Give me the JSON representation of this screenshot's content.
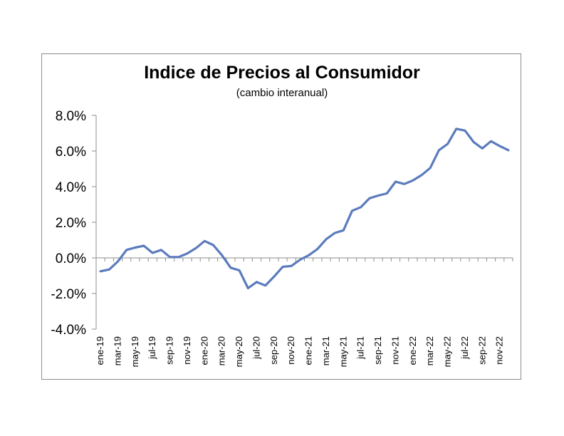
{
  "chart_data": {
    "type": "line",
    "title": "Indice de Precios al Consumidor",
    "subtitle": "(cambio interanual)",
    "xlabel": "",
    "ylabel": "",
    "ylim": [
      -4.0,
      8.0
    ],
    "ytick_values": [
      -4.0,
      -2.0,
      0.0,
      2.0,
      4.0,
      6.0,
      8.0
    ],
    "ytick_labels": [
      "-4.0%",
      "-2.0%",
      "0.0%",
      "2.0%",
      "4.0%",
      "6.0%",
      "8.0%"
    ],
    "grid": false,
    "legend": "none",
    "color": "#5b7bbd",
    "categories": [
      "ene-19",
      "feb-19",
      "mar-19",
      "abr-19",
      "may-19",
      "jun-19",
      "jul-19",
      "ago-19",
      "sep-19",
      "oct-19",
      "nov-19",
      "dic-19",
      "ene-20",
      "feb-20",
      "mar-20",
      "abr-20",
      "may-20",
      "jun-20",
      "jul-20",
      "ago-20",
      "sep-20",
      "oct-20",
      "nov-20",
      "dic-20",
      "ene-21",
      "feb-21",
      "mar-21",
      "abr-21",
      "may-21",
      "jun-21",
      "jul-21",
      "ago-21",
      "sep-21",
      "oct-21",
      "nov-21",
      "dic-21",
      "ene-22",
      "feb-22",
      "mar-22",
      "abr-22",
      "may-22",
      "jun-22",
      "jul-22",
      "ago-22",
      "sep-22",
      "oct-22",
      "nov-22",
      "dic-22"
    ],
    "tick_labels": [
      "ene-19",
      "mar-19",
      "may-19",
      "jul-19",
      "sep-19",
      "nov-19",
      "ene-20",
      "mar-20",
      "may-20",
      "jul-20",
      "sep-20",
      "nov-20",
      "ene-21",
      "mar-21",
      "may-21",
      "jul-21",
      "sep-21",
      "nov-21",
      "ene-22",
      "mar-22",
      "may-22",
      "jul-22",
      "sep-22",
      "nov-22"
    ],
    "series": [
      {
        "values": [
          -0.75,
          -0.65,
          -0.2,
          0.45,
          0.58,
          0.68,
          0.28,
          0.45,
          0.05,
          0.05,
          0.25,
          0.55,
          0.95,
          0.72,
          0.15,
          -0.55,
          -0.7,
          -1.7,
          -1.35,
          -1.55,
          -1.05,
          -0.5,
          -0.45,
          -0.1,
          0.15,
          0.5,
          1.05,
          1.4,
          1.55,
          2.65,
          2.85,
          3.35,
          3.5,
          3.62,
          4.28,
          4.15,
          4.35,
          4.65,
          5.05,
          6.05,
          6.4,
          7.25,
          7.15,
          6.5,
          6.15,
          6.55,
          6.28,
          6.05
        ]
      }
    ]
  }
}
